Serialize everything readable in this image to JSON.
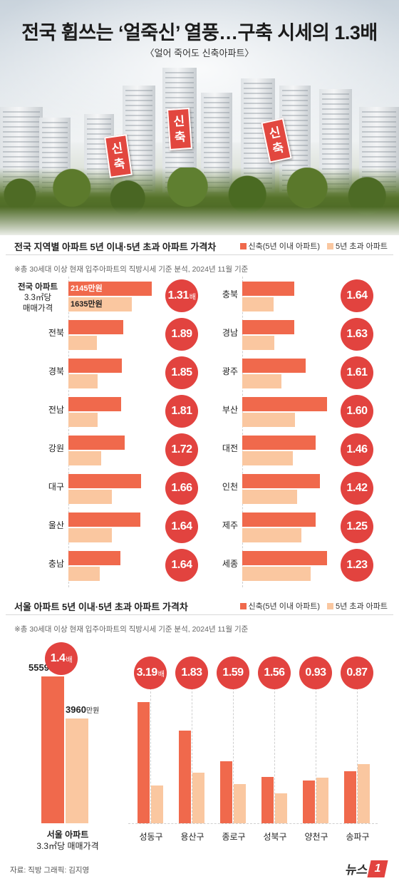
{
  "title": "전국 휩쓰는 ‘얼죽신’ 열풍…구축 시세의 1.3배",
  "subtitle": "〈얼어 죽어도 신축아파트〉",
  "banners": [
    "신축",
    "신축",
    "신축"
  ],
  "legend": {
    "new": "신축(5년 이내 아파트)",
    "old": "5년 초과 아파트"
  },
  "colors": {
    "new": "#f0694c",
    "old": "#fac7a0",
    "ratio": "#e2433f"
  },
  "note": "※총 30세대 이상 현재 입주아파트의 직방시세 기준 분석, 2024년 11월 기준",
  "chart_data": [
    {
      "type": "bar",
      "title": "전국 지역별 아파트 5년 이내·5년 초과 아파트 가격차",
      "national": {
        "label_lines": [
          "전국 아파트",
          "3.3㎡당",
          "매매가격"
        ],
        "new_value": 2145,
        "old_value": 1635,
        "unit": "만원",
        "new_text": "2145만원",
        "old_text": "1635만원",
        "ratio": "1.31",
        "ratio_unit": "배"
      },
      "series": [
        {
          "name": "신축(5년 이내 아파트)",
          "key": "new"
        },
        {
          "name": "5년 초과 아파트",
          "key": "old"
        }
      ],
      "regions": [
        {
          "name": "전북",
          "new": 1400,
          "old": 740,
          "ratio": "1.89"
        },
        {
          "name": "경북",
          "new": 1380,
          "old": 745,
          "ratio": "1.85"
        },
        {
          "name": "전남",
          "new": 1360,
          "old": 750,
          "ratio": "1.81"
        },
        {
          "name": "강원",
          "new": 1440,
          "old": 840,
          "ratio": "1.72"
        },
        {
          "name": "대구",
          "new": 1860,
          "old": 1120,
          "ratio": "1.66"
        },
        {
          "name": "울산",
          "new": 1840,
          "old": 1120,
          "ratio": "1.64"
        },
        {
          "name": "충남",
          "new": 1330,
          "old": 810,
          "ratio": "1.64"
        },
        {
          "name": "충북",
          "new": 1330,
          "old": 810,
          "ratio": "1.64"
        },
        {
          "name": "경남",
          "new": 1330,
          "old": 815,
          "ratio": "1.63"
        },
        {
          "name": "광주",
          "new": 1620,
          "old": 1005,
          "ratio": "1.61"
        },
        {
          "name": "부산",
          "new": 2170,
          "old": 1355,
          "ratio": "1.60"
        },
        {
          "name": "대전",
          "new": 1890,
          "old": 1295,
          "ratio": "1.46"
        },
        {
          "name": "인천",
          "new": 1990,
          "old": 1400,
          "ratio": "1.42"
        },
        {
          "name": "제주",
          "new": 1890,
          "old": 1510,
          "ratio": "1.25"
        },
        {
          "name": "세종",
          "new": 2170,
          "old": 1765,
          "ratio": "1.23"
        }
      ]
    },
    {
      "type": "bar",
      "title": "서울 아파트 5년 이내·5년 초과 아파트 가격차",
      "seoul": {
        "label_lines": [
          "서울 아파트",
          "3.3㎡당 매매가격"
        ],
        "new_value": 5559,
        "old_value": 3960,
        "unit": "만원",
        "new_num": "5559",
        "old_num": "3960",
        "ratio": "1.4",
        "ratio_unit": "배"
      },
      "districts": [
        {
          "name": "성동구",
          "new": 9600,
          "old": 3010,
          "ratio": "3.19",
          "ratio_unit": "배"
        },
        {
          "name": "용산구",
          "new": 7340,
          "old": 4010,
          "ratio": "1.83"
        },
        {
          "name": "종로구",
          "new": 4940,
          "old": 3110,
          "ratio": "1.59"
        },
        {
          "name": "성북구",
          "new": 3670,
          "old": 2350,
          "ratio": "1.56"
        },
        {
          "name": "양천구",
          "new": 3370,
          "old": 3620,
          "ratio": "0.93"
        },
        {
          "name": "송파구",
          "new": 4100,
          "old": 4710,
          "ratio": "0.87"
        }
      ]
    }
  ],
  "source": "자료: 직방   그래픽: 김지영",
  "logo": {
    "text": "뉴스",
    "mark": "1"
  }
}
